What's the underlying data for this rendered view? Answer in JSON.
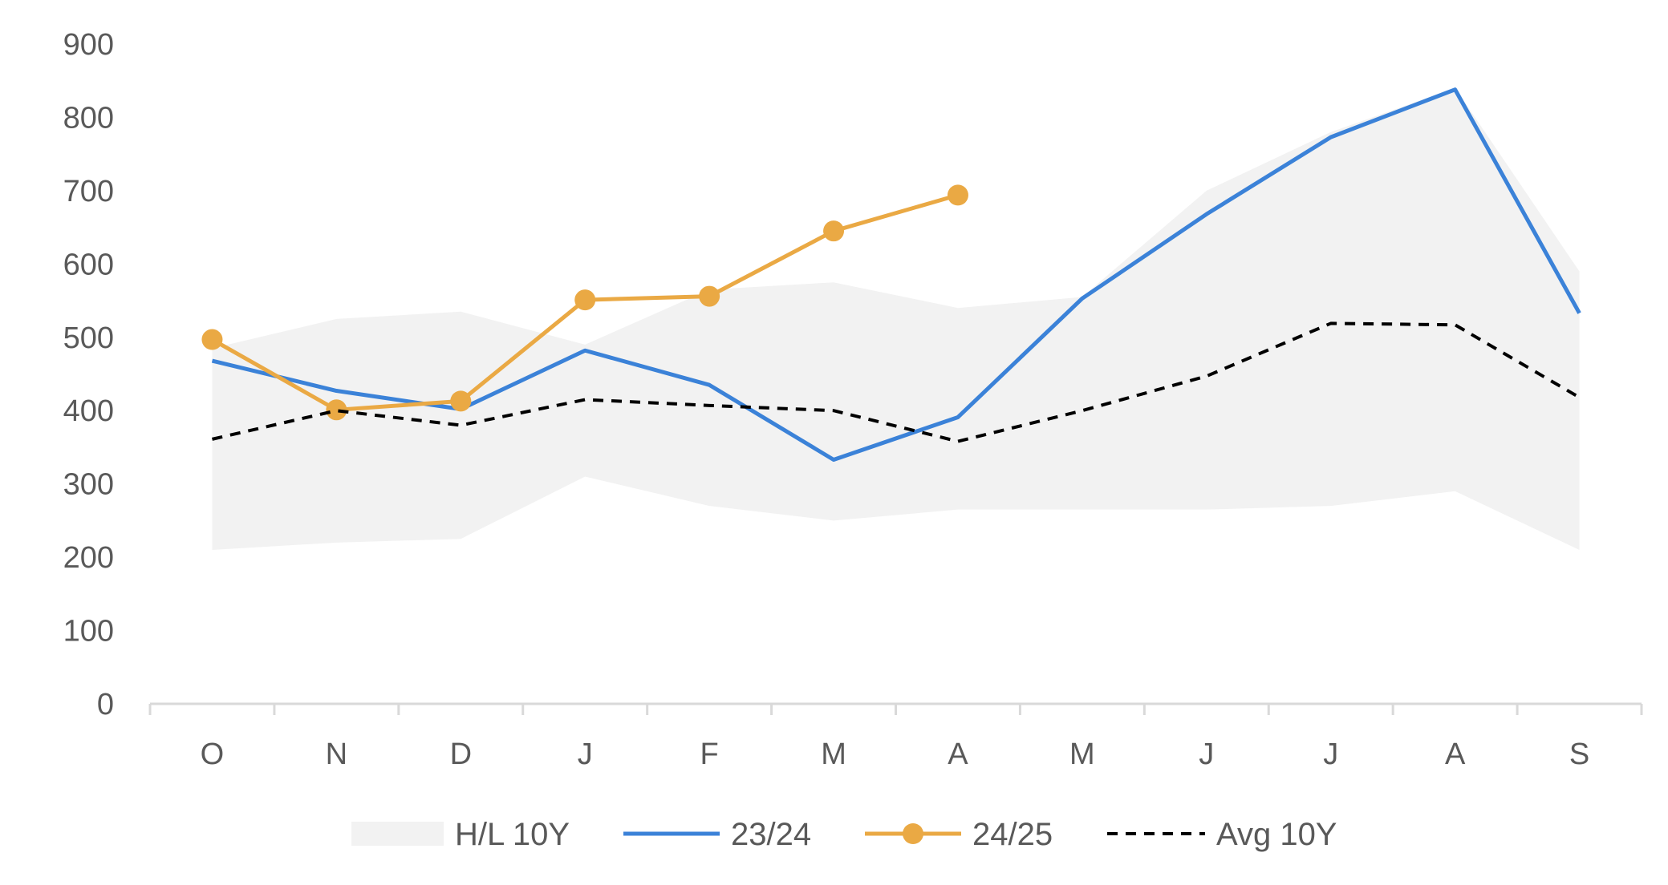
{
  "chart_data": {
    "type": "line",
    "categories": [
      "O",
      "N",
      "D",
      "J",
      "F",
      "M",
      "A",
      "M",
      "J",
      "J",
      "A",
      "S"
    ],
    "ylim": [
      0,
      900
    ],
    "yticks": [
      "0",
      "100",
      "200",
      "300",
      "400",
      "500",
      "600",
      "700",
      "800",
      "900"
    ],
    "grid": false,
    "legend_position": "bottom",
    "band": {
      "name": "H/L 10Y",
      "color": "#f2f2f2",
      "high": [
        485,
        525,
        535,
        490,
        565,
        575,
        540,
        555,
        700,
        780,
        840,
        590
      ],
      "low": [
        210,
        220,
        225,
        310,
        270,
        250,
        265,
        265,
        265,
        270,
        290,
        210
      ]
    },
    "series": [
      {
        "name": "23/24",
        "color": "#3b82d8",
        "style": "solid",
        "markers": false,
        "values": [
          468,
          427,
          402,
          482,
          435,
          333,
          391,
          553,
          668,
          773,
          838,
          533
        ]
      },
      {
        "name": "24/25",
        "color": "#eaa944",
        "style": "solid",
        "markers": true,
        "values": [
          497,
          401,
          413,
          551,
          556,
          645,
          694,
          null,
          null,
          null,
          null,
          null
        ]
      },
      {
        "name": "Avg 10Y",
        "color": "#000000",
        "style": "dashed",
        "markers": false,
        "values": [
          361,
          400,
          380,
          415,
          407,
          400,
          358,
          400,
          447,
          519,
          517,
          418
        ]
      }
    ]
  }
}
